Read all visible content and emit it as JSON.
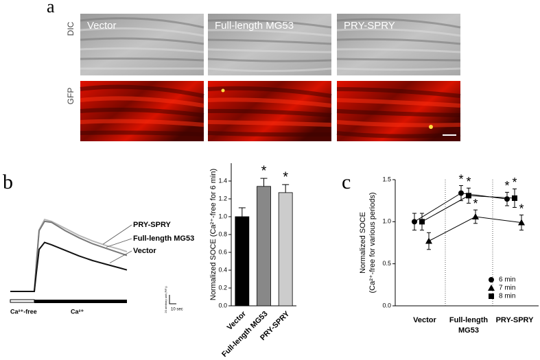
{
  "panel_labels": [
    "a",
    "b",
    "c"
  ],
  "panel_a": {
    "row_labels": [
      "DIC",
      "GFP"
    ],
    "column_labels": [
      "Vector",
      "Full-length MG53",
      "PRY-SPRY"
    ]
  },
  "chart_data": [
    {
      "type": "line",
      "x": [
        0,
        30,
        35,
        38,
        42,
        50,
        60,
        80,
        100,
        120,
        140,
        160,
        170
      ],
      "xlim": [
        0,
        170
      ],
      "ylim": [
        0,
        160
      ],
      "series": [
        {
          "name": "PRY-SPRY",
          "color": "#b8b8b8",
          "values": [
            0,
            0,
            0,
            60,
            132,
            154,
            150,
            135,
            120,
            108,
            98,
            90,
            85
          ]
        },
        {
          "name": "Full-length MG53",
          "color": "#777777",
          "values": [
            0,
            0,
            0,
            60,
            130,
            150,
            148,
            130,
            115,
            102,
            92,
            82,
            77
          ]
        },
        {
          "name": "Vector",
          "color": "#111111",
          "values": [
            0,
            0,
            0,
            40,
            90,
            105,
            100,
            88,
            76,
            66,
            58,
            50,
            46
          ]
        }
      ],
      "phase_labels": [
        "Ca²⁺-free",
        "Ca²⁺"
      ],
      "scale_bar": {
        "vertical": "20 arbitrary unit (F/F₀)",
        "horizontal": "10 sec"
      }
    },
    {
      "type": "bar",
      "y_label": "Normalized SOCE (Ca²⁺-free for 6 min)",
      "categories": [
        "Vector",
        "Full-length MG53",
        "PRY-SPRY"
      ],
      "values": [
        1.0,
        1.34,
        1.27
      ],
      "errors": [
        0.1,
        0.09,
        0.09
      ],
      "colors": [
        "#000000",
        "#888888",
        "#cccccc"
      ],
      "significance": [
        null,
        "*",
        "*"
      ],
      "ylim": [
        0,
        1.6
      ],
      "yticks": [
        {
          "value": 0,
          "label": "0.0"
        },
        {
          "value": 0.2,
          "label": "0.2"
        },
        {
          "value": 0.4,
          "label": "0.4"
        },
        {
          "value": 0.6,
          "label": "0.6"
        },
        {
          "value": 0.8,
          "label": "0.8"
        },
        {
          "value": 1,
          "label": "1.0"
        },
        {
          "value": 1.2,
          "label": "1.2"
        },
        {
          "value": 1.4,
          "label": "1.4"
        }
      ]
    },
    {
      "type": "line",
      "y_label": [
        "Normalized SOCE",
        "(Ca²⁺-free for various periods)"
      ],
      "categories": [
        "Vector",
        "Full-length MG53",
        "PRY-SPRY"
      ],
      "series": [
        {
          "name": "6 min",
          "marker": "circle",
          "color": "#000000",
          "values": [
            1.0,
            1.34,
            1.27
          ],
          "errors": [
            0.1,
            0.09,
            0.08
          ],
          "significance": [
            null,
            "*",
            "*"
          ]
        },
        {
          "name": "7 min",
          "marker": "triangle",
          "color": "#000000",
          "values": [
            0.77,
            1.06,
            0.99
          ],
          "errors": [
            0.1,
            0.08,
            0.09
          ],
          "significance": [
            null,
            "*",
            "*"
          ]
        },
        {
          "name": "8 min",
          "marker": "square",
          "color": "#000000",
          "values": [
            1.0,
            1.31,
            1.28
          ],
          "errors": [
            0.1,
            0.09,
            0.11
          ],
          "significance": [
            null,
            "*",
            "*"
          ]
        }
      ],
      "ylim": [
        0,
        1.5
      ],
      "yticks": [
        {
          "value": 0,
          "label": "0.0"
        },
        {
          "value": 0.5,
          "label": "0.5"
        },
        {
          "value": 1,
          "label": "1.0"
        },
        {
          "value": 1.5,
          "label": "1.5"
        }
      ],
      "legend": "lower right"
    }
  ]
}
